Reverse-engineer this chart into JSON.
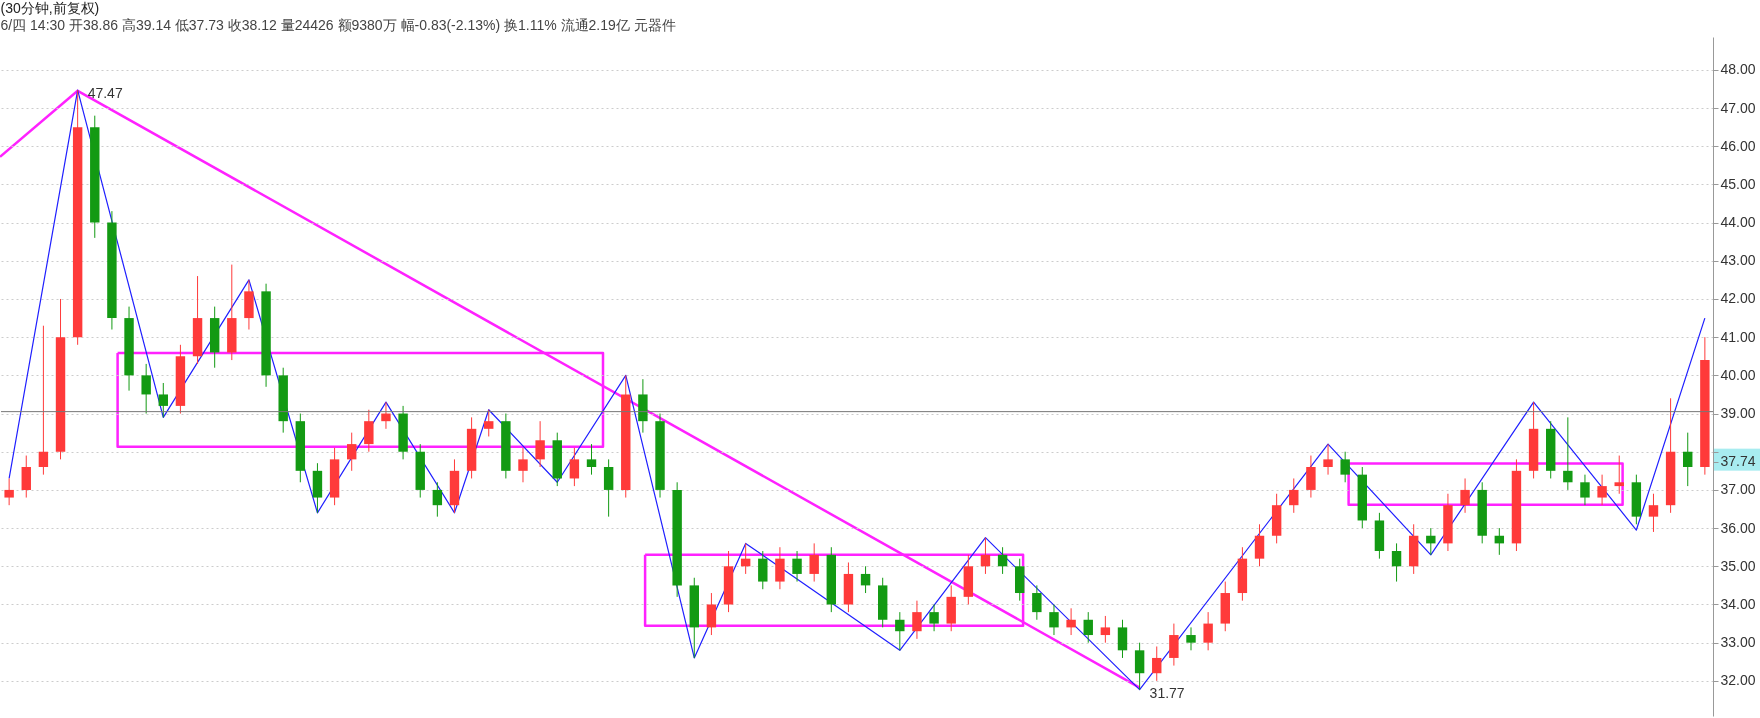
{
  "chart_data": {
    "type": "candlestick",
    "title": "(30分钟,前复权)",
    "subtitle": "6/四 14:30 开38.86 高39.14 低37.73 收38.12 量24426 额9380万 幅-0.83(-2.13%) 换1.11% 流通2.19亿 元器件",
    "categories": [
      null,
      null,
      null,
      null,
      null,
      null,
      null,
      null,
      null,
      null,
      null,
      null,
      null,
      null,
      null,
      null,
      null,
      null,
      null,
      null,
      null,
      null,
      null,
      null,
      null,
      null,
      null,
      null,
      null,
      null,
      null,
      null,
      null,
      null,
      null,
      null,
      null,
      null,
      null,
      null,
      null,
      null,
      null,
      null,
      null,
      null,
      null,
      null,
      null,
      null,
      null,
      null,
      null,
      null,
      null,
      null,
      null,
      null,
      null,
      null,
      null,
      null,
      null,
      null,
      null,
      null,
      null,
      null,
      null,
      null,
      null,
      null,
      null,
      null,
      null,
      null,
      null,
      null,
      null,
      null,
      null,
      null,
      null,
      null,
      null,
      null,
      null,
      null,
      null,
      null,
      null,
      null,
      null,
      null,
      null,
      null,
      null,
      null,
      null,
      null
    ],
    "ohlc": [
      [
        36.8,
        37.3,
        36.6,
        37.0
      ],
      [
        37.0,
        37.9,
        36.8,
        37.6
      ],
      [
        37.6,
        41.3,
        37.4,
        38.0
      ],
      [
        38.0,
        42.0,
        37.8,
        41.0
      ],
      [
        41.0,
        47.47,
        40.8,
        46.5
      ],
      [
        46.5,
        46.8,
        43.6,
        44.0
      ],
      [
        44.0,
        44.3,
        41.2,
        41.5
      ],
      [
        41.5,
        41.8,
        39.6,
        40.0
      ],
      [
        40.0,
        40.3,
        39.0,
        39.5
      ],
      [
        39.5,
        39.8,
        38.9,
        39.2
      ],
      [
        39.2,
        40.8,
        39.0,
        40.5
      ],
      [
        40.5,
        42.6,
        40.3,
        41.5
      ],
      [
        41.5,
        41.8,
        40.2,
        40.6
      ],
      [
        40.6,
        42.9,
        40.4,
        41.5
      ],
      [
        41.5,
        42.5,
        41.2,
        42.2
      ],
      [
        42.2,
        42.4,
        39.7,
        40.0
      ],
      [
        40.0,
        40.2,
        38.5,
        38.8
      ],
      [
        38.8,
        39.0,
        37.2,
        37.5
      ],
      [
        37.5,
        37.7,
        36.4,
        36.8
      ],
      [
        36.8,
        38.1,
        36.6,
        37.8
      ],
      [
        37.8,
        38.5,
        37.5,
        38.2
      ],
      [
        38.2,
        39.1,
        38.0,
        38.8
      ],
      [
        38.8,
        39.3,
        38.6,
        39.0
      ],
      [
        39.0,
        39.2,
        37.8,
        38.0
      ],
      [
        38.0,
        38.2,
        36.8,
        37.0
      ],
      [
        37.0,
        37.2,
        36.3,
        36.6
      ],
      [
        36.6,
        37.8,
        36.4,
        37.5
      ],
      [
        37.5,
        38.9,
        37.3,
        38.6
      ],
      [
        38.6,
        39.1,
        38.4,
        38.8
      ],
      [
        38.8,
        39.0,
        37.3,
        37.5
      ],
      [
        37.5,
        38.1,
        37.2,
        37.8
      ],
      [
        37.8,
        38.8,
        37.6,
        38.3
      ],
      [
        38.3,
        38.5,
        37.1,
        37.3
      ],
      [
        37.3,
        38.1,
        37.1,
        37.8
      ],
      [
        37.8,
        38.2,
        37.4,
        37.6
      ],
      [
        37.6,
        37.8,
        36.3,
        37.0
      ],
      [
        37.0,
        40.0,
        36.8,
        39.5
      ],
      [
        39.5,
        39.9,
        38.5,
        38.8
      ],
      [
        38.8,
        39.0,
        36.8,
        37.0
      ],
      [
        37.0,
        37.2,
        34.2,
        34.5
      ],
      [
        34.5,
        34.7,
        32.6,
        33.4
      ],
      [
        33.4,
        34.3,
        33.2,
        34.0
      ],
      [
        34.0,
        35.4,
        33.8,
        35.0
      ],
      [
        35.0,
        35.6,
        34.8,
        35.2
      ],
      [
        35.2,
        35.4,
        34.4,
        34.6
      ],
      [
        34.6,
        35.5,
        34.4,
        35.2
      ],
      [
        35.2,
        35.4,
        34.6,
        34.8
      ],
      [
        34.8,
        35.6,
        34.6,
        35.3
      ],
      [
        35.3,
        35.5,
        33.8,
        34.0
      ],
      [
        34.0,
        35.1,
        33.8,
        34.8
      ],
      [
        34.8,
        35.0,
        34.3,
        34.5
      ],
      [
        34.5,
        34.7,
        33.4,
        33.6
      ],
      [
        33.6,
        33.8,
        32.8,
        33.3
      ],
      [
        33.3,
        34.1,
        33.1,
        33.8
      ],
      [
        33.8,
        34.0,
        33.3,
        33.5
      ],
      [
        33.5,
        34.5,
        33.3,
        34.2
      ],
      [
        34.2,
        35.3,
        34.0,
        35.0
      ],
      [
        35.0,
        35.75,
        34.8,
        35.3
      ],
      [
        35.3,
        35.5,
        34.8,
        35.0
      ],
      [
        35.0,
        35.2,
        34.1,
        34.3
      ],
      [
        34.3,
        34.5,
        33.6,
        33.8
      ],
      [
        33.8,
        34.0,
        33.2,
        33.4
      ],
      [
        33.4,
        33.9,
        33.2,
        33.6
      ],
      [
        33.6,
        33.8,
        33.0,
        33.2
      ],
      [
        33.2,
        33.7,
        33.0,
        33.4
      ],
      [
        33.4,
        33.6,
        32.6,
        32.8
      ],
      [
        32.8,
        33.0,
        31.77,
        32.2
      ],
      [
        32.2,
        32.9,
        32.0,
        32.6
      ],
      [
        32.6,
        33.5,
        32.4,
        33.2
      ],
      [
        33.2,
        33.4,
        32.8,
        33.0
      ],
      [
        33.0,
        33.8,
        32.8,
        33.5
      ],
      [
        33.5,
        34.6,
        33.3,
        34.3
      ],
      [
        34.3,
        35.5,
        34.1,
        35.2
      ],
      [
        35.2,
        36.1,
        35.0,
        35.8
      ],
      [
        35.8,
        36.9,
        35.6,
        36.6
      ],
      [
        36.6,
        37.3,
        36.4,
        37.0
      ],
      [
        37.0,
        37.9,
        36.8,
        37.6
      ],
      [
        37.6,
        38.2,
        37.4,
        37.8
      ],
      [
        37.8,
        38.0,
        37.2,
        37.4
      ],
      [
        37.4,
        37.6,
        36.0,
        36.2
      ],
      [
        36.2,
        36.4,
        35.2,
        35.4
      ],
      [
        35.4,
        35.6,
        34.6,
        35.0
      ],
      [
        35.0,
        36.1,
        34.8,
        35.8
      ],
      [
        35.8,
        36.0,
        35.3,
        35.6
      ],
      [
        35.6,
        36.9,
        35.4,
        36.6
      ],
      [
        36.6,
        37.3,
        36.4,
        37.0
      ],
      [
        37.0,
        37.2,
        35.6,
        35.8
      ],
      [
        35.8,
        36.0,
        35.3,
        35.6
      ],
      [
        35.6,
        37.8,
        35.4,
        37.5
      ],
      [
        37.5,
        39.3,
        37.3,
        38.6
      ],
      [
        38.6,
        38.8,
        37.3,
        37.5
      ],
      [
        37.5,
        38.9,
        37.0,
        37.2
      ],
      [
        37.2,
        37.4,
        36.6,
        36.8
      ],
      [
        36.8,
        37.4,
        36.6,
        37.1
      ],
      [
        37.1,
        37.9,
        36.9,
        37.2
      ],
      [
        37.2,
        37.4,
        36.1,
        36.3
      ],
      [
        36.3,
        36.9,
        35.9,
        36.6
      ],
      [
        36.6,
        39.4,
        36.4,
        38.0
      ],
      [
        38.0,
        38.5,
        37.1,
        37.6
      ],
      [
        37.6,
        41.0,
        37.4,
        40.4
      ]
    ],
    "series": [
      {
        "type": "line",
        "color": "#1f1fff",
        "values": [
          37.3,
          null,
          null,
          null,
          47.47,
          null,
          null,
          null,
          null,
          38.9,
          null,
          null,
          null,
          null,
          42.5,
          null,
          null,
          null,
          36.4,
          null,
          null,
          null,
          39.3,
          null,
          null,
          null,
          36.4,
          null,
          39.1,
          null,
          null,
          null,
          37.2,
          null,
          null,
          null,
          40.0,
          null,
          null,
          null,
          32.6,
          null,
          null,
          35.6,
          null,
          null,
          null,
          null,
          null,
          null,
          null,
          null,
          32.8,
          null,
          null,
          null,
          null,
          35.75,
          null,
          null,
          null,
          null,
          null,
          null,
          null,
          null,
          31.77,
          null,
          null,
          null,
          null,
          null,
          null,
          null,
          null,
          null,
          null,
          38.2,
          null,
          null,
          null,
          null,
          null,
          35.3,
          null,
          null,
          null,
          null,
          null,
          39.3,
          null,
          null,
          null,
          null,
          null,
          35.95,
          null,
          null,
          null,
          41.5
        ]
      }
    ],
    "ref_lines": [
      {
        "axis": "y",
        "value": 39.05,
        "color": "#777777"
      }
    ],
    "annotations": [
      "47.47",
      "31.77"
    ],
    "ylim": [
      31.08,
      48.86
    ],
    "yticks": [
      {
        "value": 32,
        "label": "32.00"
      },
      {
        "value": 33,
        "label": "33.00"
      },
      {
        "value": 34,
        "label": "34.00"
      },
      {
        "value": 35,
        "label": "35.00"
      },
      {
        "value": 36,
        "label": "36.00"
      },
      {
        "value": 37,
        "label": "37.00"
      },
      {
        "value": 37.74,
        "label": "37.74"
      },
      {
        "value": 38,
        "label": null
      },
      {
        "value": 39,
        "label": "39.00"
      },
      {
        "value": 40,
        "label": "40.00"
      },
      {
        "value": 41,
        "label": "41.00"
      },
      {
        "value": 42,
        "label": "42.00"
      },
      {
        "value": 43,
        "label": "43.00"
      },
      {
        "value": 44,
        "label": "44.00"
      },
      {
        "value": 45,
        "label": "45.00"
      },
      {
        "value": 46,
        "label": "46.00"
      },
      {
        "value": 47,
        "label": "47.00"
      },
      {
        "value": 48,
        "label": "48.00"
      }
    ],
    "grid": "y",
    "tick_labels": "y"
  }
}
